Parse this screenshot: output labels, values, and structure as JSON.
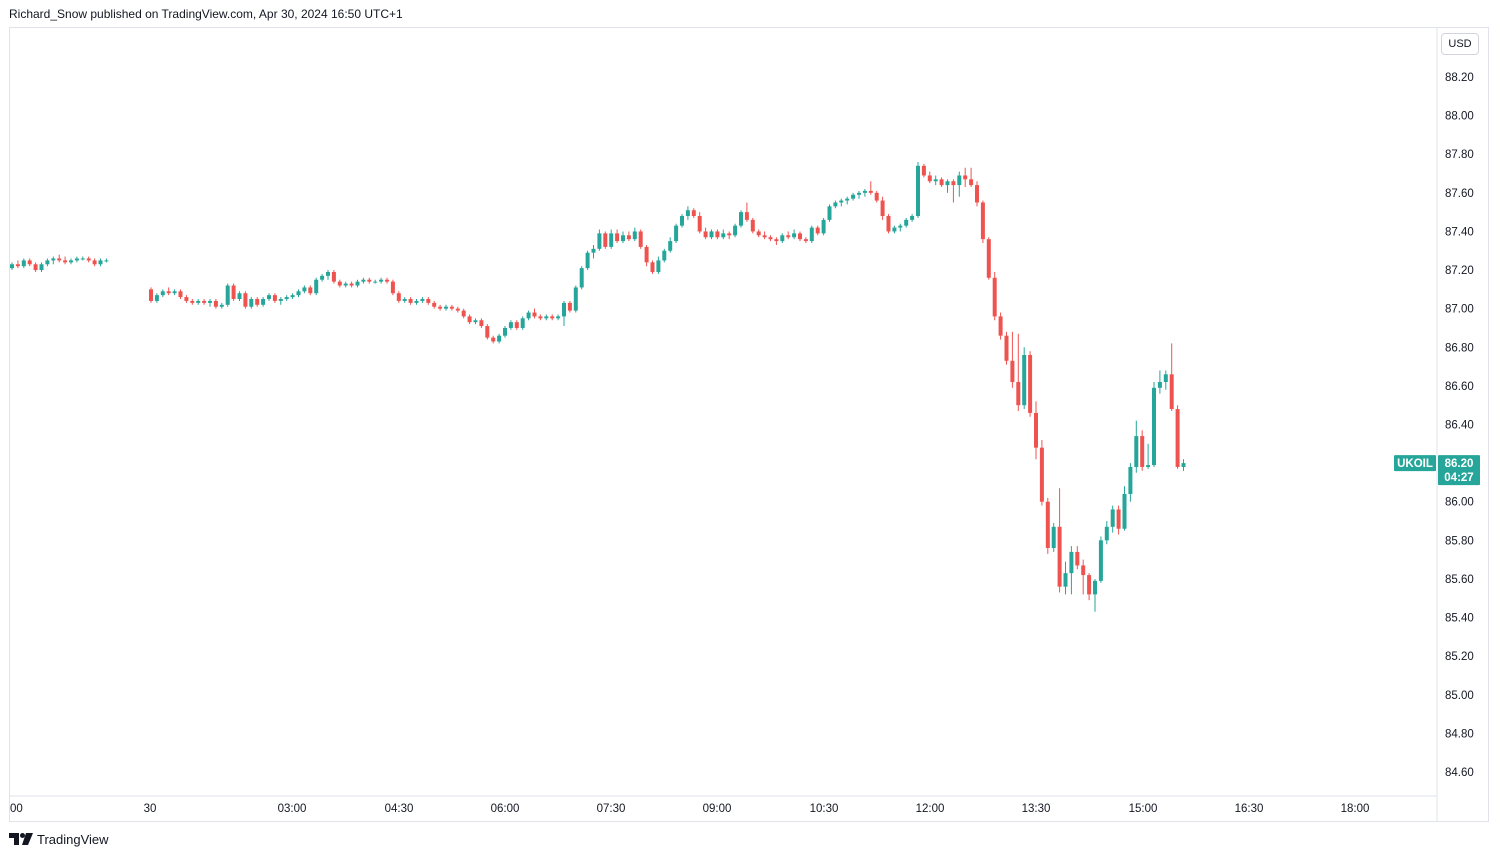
{
  "header": {
    "publisher_line": "Richard_Snow published on TradingView.com, Apr 30, 2024 16:50 UTC+1"
  },
  "brand": {
    "name": "TradingView",
    "icon": "tradingview-logo-icon"
  },
  "chart_data": {
    "type": "candlestick",
    "symbol": "UKOIL",
    "currency": "USD",
    "last_price": "86.20",
    "countdown": "04:27",
    "colors": {
      "up": "#26a69a",
      "down": "#ef5350",
      "last_label_bg": "#26a69a"
    },
    "grid": false,
    "ylim": [
      84.4,
      88.4
    ],
    "y_ticks": [
      "88.20",
      "88.00",
      "87.80",
      "87.60",
      "87.40",
      "87.20",
      "87.00",
      "86.80",
      "86.60",
      "86.40",
      "86.20",
      "86.00",
      "85.80",
      "85.60",
      "85.40",
      "85.20",
      "85.00",
      "84.80",
      "84.60"
    ],
    "x_ticks": [
      "00",
      "30",
      "03:00",
      "04:30",
      "06:00",
      "07:30",
      "09:00",
      "10:30",
      "12:00",
      "13:30",
      "15:00",
      "16:30",
      "18:00"
    ],
    "candles": [
      [
        87.21,
        87.24,
        87.2,
        87.23
      ],
      [
        87.23,
        87.25,
        87.21,
        87.22
      ],
      [
        87.22,
        87.26,
        87.21,
        87.25
      ],
      [
        87.25,
        87.26,
        87.22,
        87.23
      ],
      [
        87.23,
        87.24,
        87.19,
        87.2
      ],
      [
        87.2,
        87.24,
        87.19,
        87.23
      ],
      [
        87.23,
        87.26,
        87.22,
        87.25
      ],
      [
        87.25,
        87.27,
        87.23,
        87.26
      ],
      [
        87.26,
        87.28,
        87.24,
        87.25
      ],
      [
        87.25,
        87.27,
        87.23,
        87.24
      ],
      [
        87.24,
        87.26,
        87.23,
        87.25
      ],
      [
        87.25,
        87.27,
        87.24,
        87.26
      ],
      [
        87.26,
        87.27,
        87.25,
        87.26
      ],
      [
        87.26,
        87.27,
        87.24,
        87.25
      ],
      [
        87.25,
        87.26,
        87.22,
        87.23
      ],
      [
        87.23,
        87.26,
        87.22,
        87.25
      ],
      [
        87.25,
        87.26,
        87.24,
        87.25
      ],
      [
        87.1,
        87.11,
        87.03,
        87.04
      ],
      [
        87.04,
        87.08,
        87.03,
        87.07
      ],
      [
        87.07,
        87.1,
        87.06,
        87.09
      ],
      [
        87.09,
        87.11,
        87.07,
        87.08
      ],
      [
        87.08,
        87.1,
        87.07,
        87.09
      ],
      [
        87.09,
        87.1,
        87.05,
        87.06
      ],
      [
        87.06,
        87.07,
        87.03,
        87.04
      ],
      [
        87.04,
        87.05,
        87.02,
        87.03
      ],
      [
        87.03,
        87.05,
        87.02,
        87.04
      ],
      [
        87.04,
        87.05,
        87.02,
        87.03
      ],
      [
        87.03,
        87.05,
        87.01,
        87.04
      ],
      [
        87.04,
        87.05,
        87.0,
        87.01
      ],
      [
        87.01,
        87.03,
        87.0,
        87.02
      ],
      [
        87.02,
        87.13,
        87.01,
        87.12
      ],
      [
        87.12,
        87.13,
        87.04,
        87.05
      ],
      [
        87.05,
        87.09,
        87.04,
        87.08
      ],
      [
        87.08,
        87.09,
        87.0,
        87.01
      ],
      [
        87.01,
        87.06,
        87.0,
        87.05
      ],
      [
        87.05,
        87.06,
        87.01,
        87.02
      ],
      [
        87.02,
        87.06,
        87.01,
        87.05
      ],
      [
        87.05,
        87.08,
        87.04,
        87.07
      ],
      [
        87.07,
        87.08,
        87.03,
        87.04
      ],
      [
        87.04,
        87.06,
        87.02,
        87.05
      ],
      [
        87.05,
        87.07,
        87.04,
        87.06
      ],
      [
        87.06,
        87.08,
        87.05,
        87.07
      ],
      [
        87.07,
        87.1,
        87.06,
        87.09
      ],
      [
        87.09,
        87.12,
        87.08,
        87.11
      ],
      [
        87.11,
        87.12,
        87.07,
        87.08
      ],
      [
        87.08,
        87.16,
        87.07,
        87.15
      ],
      [
        87.15,
        87.18,
        87.14,
        87.17
      ],
      [
        87.17,
        87.2,
        87.15,
        87.19
      ],
      [
        87.19,
        87.2,
        87.13,
        87.14
      ],
      [
        87.14,
        87.15,
        87.11,
        87.12
      ],
      [
        87.12,
        87.14,
        87.11,
        87.13
      ],
      [
        87.13,
        87.14,
        87.11,
        87.12
      ],
      [
        87.12,
        87.15,
        87.11,
        87.14
      ],
      [
        87.14,
        87.16,
        87.13,
        87.15
      ],
      [
        87.15,
        87.16,
        87.13,
        87.14
      ],
      [
        87.14,
        87.15,
        87.13,
        87.14
      ],
      [
        87.14,
        87.16,
        87.13,
        87.15
      ],
      [
        87.15,
        87.16,
        87.13,
        87.14
      ],
      [
        87.14,
        87.15,
        87.07,
        87.08
      ],
      [
        87.08,
        87.09,
        87.03,
        87.04
      ],
      [
        87.04,
        87.06,
        87.03,
        87.05
      ],
      [
        87.05,
        87.06,
        87.02,
        87.03
      ],
      [
        87.03,
        87.05,
        87.02,
        87.04
      ],
      [
        87.04,
        87.06,
        87.03,
        87.05
      ],
      [
        87.05,
        87.06,
        87.02,
        87.03
      ],
      [
        87.03,
        87.04,
        87.0,
        87.01
      ],
      [
        87.01,
        87.02,
        86.99,
        87.0
      ],
      [
        87.0,
        87.02,
        86.99,
        87.01
      ],
      [
        87.01,
        87.02,
        86.99,
        87.0
      ],
      [
        87.0,
        87.01,
        86.98,
        86.99
      ],
      [
        86.99,
        87.0,
        86.95,
        86.96
      ],
      [
        86.96,
        86.97,
        86.92,
        86.93
      ],
      [
        86.93,
        86.95,
        86.92,
        86.94
      ],
      [
        86.94,
        86.95,
        86.9,
        86.91
      ],
      [
        86.91,
        86.92,
        86.84,
        86.85
      ],
      [
        86.85,
        86.86,
        86.82,
        86.83
      ],
      [
        86.83,
        86.87,
        86.82,
        86.86
      ],
      [
        86.86,
        86.91,
        86.85,
        86.9
      ],
      [
        86.9,
        86.94,
        86.89,
        86.93
      ],
      [
        86.93,
        86.94,
        86.89,
        86.9
      ],
      [
        86.9,
        86.96,
        86.89,
        86.95
      ],
      [
        86.95,
        86.99,
        86.94,
        86.98
      ],
      [
        86.98,
        87.0,
        86.95,
        86.96
      ],
      [
        86.96,
        86.97,
        86.94,
        86.95
      ],
      [
        86.95,
        86.97,
        86.94,
        86.96
      ],
      [
        86.96,
        86.97,
        86.94,
        86.95
      ],
      [
        86.95,
        86.97,
        86.94,
        86.96
      ],
      [
        86.96,
        87.04,
        86.91,
        87.03
      ],
      [
        87.03,
        87.04,
        86.98,
        86.99
      ],
      [
        86.99,
        87.12,
        86.98,
        87.11
      ],
      [
        87.11,
        87.22,
        87.1,
        87.21
      ],
      [
        87.21,
        87.3,
        87.2,
        87.29
      ],
      [
        87.29,
        87.33,
        87.26,
        87.31
      ],
      [
        87.31,
        87.41,
        87.3,
        87.39
      ],
      [
        87.39,
        87.4,
        87.31,
        87.32
      ],
      [
        87.32,
        87.41,
        87.31,
        87.39
      ],
      [
        87.39,
        87.41,
        87.34,
        87.35
      ],
      [
        87.35,
        87.4,
        87.34,
        87.38
      ],
      [
        87.38,
        87.4,
        87.35,
        87.36
      ],
      [
        87.36,
        87.42,
        87.35,
        87.4
      ],
      [
        87.4,
        87.41,
        87.31,
        87.32
      ],
      [
        87.32,
        87.33,
        87.22,
        87.24
      ],
      [
        87.24,
        87.25,
        87.18,
        87.19
      ],
      [
        87.19,
        87.27,
        87.18,
        87.25
      ],
      [
        87.25,
        87.31,
        87.24,
        87.3
      ],
      [
        87.3,
        87.37,
        87.29,
        87.35
      ],
      [
        87.35,
        87.44,
        87.34,
        87.43
      ],
      [
        87.43,
        87.49,
        87.42,
        87.48
      ],
      [
        87.48,
        87.53,
        87.46,
        87.51
      ],
      [
        87.51,
        87.52,
        87.47,
        87.48
      ],
      [
        87.48,
        87.5,
        87.39,
        87.4
      ],
      [
        87.4,
        87.42,
        87.36,
        87.37
      ],
      [
        87.37,
        87.41,
        87.36,
        87.4
      ],
      [
        87.4,
        87.41,
        87.36,
        87.37
      ],
      [
        87.37,
        87.41,
        87.36,
        87.39
      ],
      [
        87.39,
        87.4,
        87.36,
        87.38
      ],
      [
        87.38,
        87.44,
        87.37,
        87.43
      ],
      [
        87.43,
        87.51,
        87.42,
        87.5
      ],
      [
        87.5,
        87.55,
        87.45,
        87.46
      ],
      [
        87.46,
        87.47,
        87.39,
        87.4
      ],
      [
        87.4,
        87.41,
        87.37,
        87.38
      ],
      [
        87.38,
        87.4,
        87.36,
        87.37
      ],
      [
        87.37,
        87.38,
        87.35,
        87.36
      ],
      [
        87.36,
        87.37,
        87.33,
        87.35
      ],
      [
        87.35,
        87.39,
        87.34,
        87.38
      ],
      [
        87.38,
        87.4,
        87.36,
        87.37
      ],
      [
        87.37,
        87.41,
        87.36,
        87.39
      ],
      [
        87.39,
        87.4,
        87.35,
        87.36
      ],
      [
        87.36,
        87.37,
        87.34,
        87.35
      ],
      [
        87.35,
        87.43,
        87.34,
        87.42
      ],
      [
        87.42,
        87.43,
        87.38,
        87.39
      ],
      [
        87.39,
        87.47,
        87.38,
        87.46
      ],
      [
        87.46,
        87.54,
        87.45,
        87.53
      ],
      [
        87.53,
        87.56,
        87.52,
        87.55
      ],
      [
        87.55,
        87.57,
        87.53,
        87.56
      ],
      [
        87.56,
        87.58,
        87.54,
        87.57
      ],
      [
        87.57,
        87.6,
        87.56,
        87.59
      ],
      [
        87.59,
        87.61,
        87.57,
        87.6
      ],
      [
        87.6,
        87.62,
        87.58,
        87.61
      ],
      [
        87.61,
        87.66,
        87.59,
        87.6
      ],
      [
        87.6,
        87.61,
        87.55,
        87.56
      ],
      [
        87.56,
        87.58,
        87.46,
        87.48
      ],
      [
        87.48,
        87.49,
        87.39,
        87.4
      ],
      [
        87.4,
        87.43,
        87.39,
        87.42
      ],
      [
        87.42,
        87.44,
        87.4,
        87.43
      ],
      [
        87.43,
        87.47,
        87.42,
        87.46
      ],
      [
        87.46,
        87.49,
        87.45,
        87.48
      ],
      [
        87.48,
        87.76,
        87.47,
        87.74
      ],
      [
        87.74,
        87.75,
        87.68,
        87.69
      ],
      [
        87.69,
        87.71,
        87.65,
        87.66
      ],
      [
        87.66,
        87.69,
        87.64,
        87.67
      ],
      [
        87.67,
        87.68,
        87.63,
        87.64
      ],
      [
        87.64,
        87.67,
        87.6,
        87.66
      ],
      [
        87.66,
        87.67,
        87.55,
        87.64
      ],
      [
        87.64,
        87.71,
        87.58,
        87.69
      ],
      [
        87.69,
        87.73,
        87.63,
        87.67
      ],
      [
        87.67,
        87.73,
        87.63,
        87.64
      ],
      [
        87.64,
        87.66,
        87.53,
        87.55
      ],
      [
        87.55,
        87.56,
        87.34,
        87.36
      ],
      [
        87.36,
        87.37,
        87.15,
        87.16
      ],
      [
        87.16,
        87.19,
        86.94,
        86.96
      ],
      [
        86.96,
        86.98,
        86.84,
        86.86
      ],
      [
        86.86,
        86.88,
        86.71,
        86.73
      ],
      [
        86.73,
        86.88,
        86.59,
        86.62
      ],
      [
        86.62,
        86.87,
        86.47,
        86.5
      ],
      [
        86.5,
        86.8,
        86.48,
        86.76
      ],
      [
        86.76,
        86.78,
        86.44,
        86.46
      ],
      [
        86.46,
        86.52,
        86.22,
        86.28
      ],
      [
        86.28,
        86.32,
        85.98,
        86.0
      ],
      [
        86.0,
        86.02,
        85.73,
        85.76
      ],
      [
        85.76,
        85.89,
        85.74,
        85.87
      ],
      [
        85.87,
        86.07,
        85.53,
        85.56
      ],
      [
        85.56,
        85.69,
        85.52,
        85.63
      ],
      [
        85.63,
        85.77,
        85.52,
        85.74
      ],
      [
        85.74,
        85.77,
        85.65,
        85.67
      ],
      [
        85.67,
        85.7,
        85.52,
        85.62
      ],
      [
        85.62,
        85.63,
        85.49,
        85.52
      ],
      [
        85.52,
        85.6,
        85.43,
        85.59
      ],
      [
        85.59,
        85.82,
        85.58,
        85.8
      ],
      [
        85.8,
        85.9,
        85.78,
        85.87
      ],
      [
        85.87,
        85.98,
        85.84,
        85.96
      ],
      [
        85.96,
        85.98,
        85.83,
        85.86
      ],
      [
        85.86,
        86.08,
        85.85,
        86.04
      ],
      [
        86.04,
        86.2,
        86.0,
        86.18
      ],
      [
        86.18,
        86.42,
        86.15,
        86.34
      ],
      [
        86.34,
        86.37,
        86.16,
        86.18
      ],
      [
        86.18,
        86.3,
        86.17,
        86.19
      ],
      [
        86.19,
        86.62,
        86.18,
        86.59
      ],
      [
        86.59,
        86.68,
        86.56,
        86.62
      ],
      [
        86.62,
        86.68,
        86.58,
        86.66
      ],
      [
        86.66,
        86.82,
        86.47,
        86.48
      ],
      [
        86.48,
        86.5,
        86.17,
        86.18
      ],
      [
        86.18,
        86.22,
        86.16,
        86.2
      ]
    ]
  }
}
